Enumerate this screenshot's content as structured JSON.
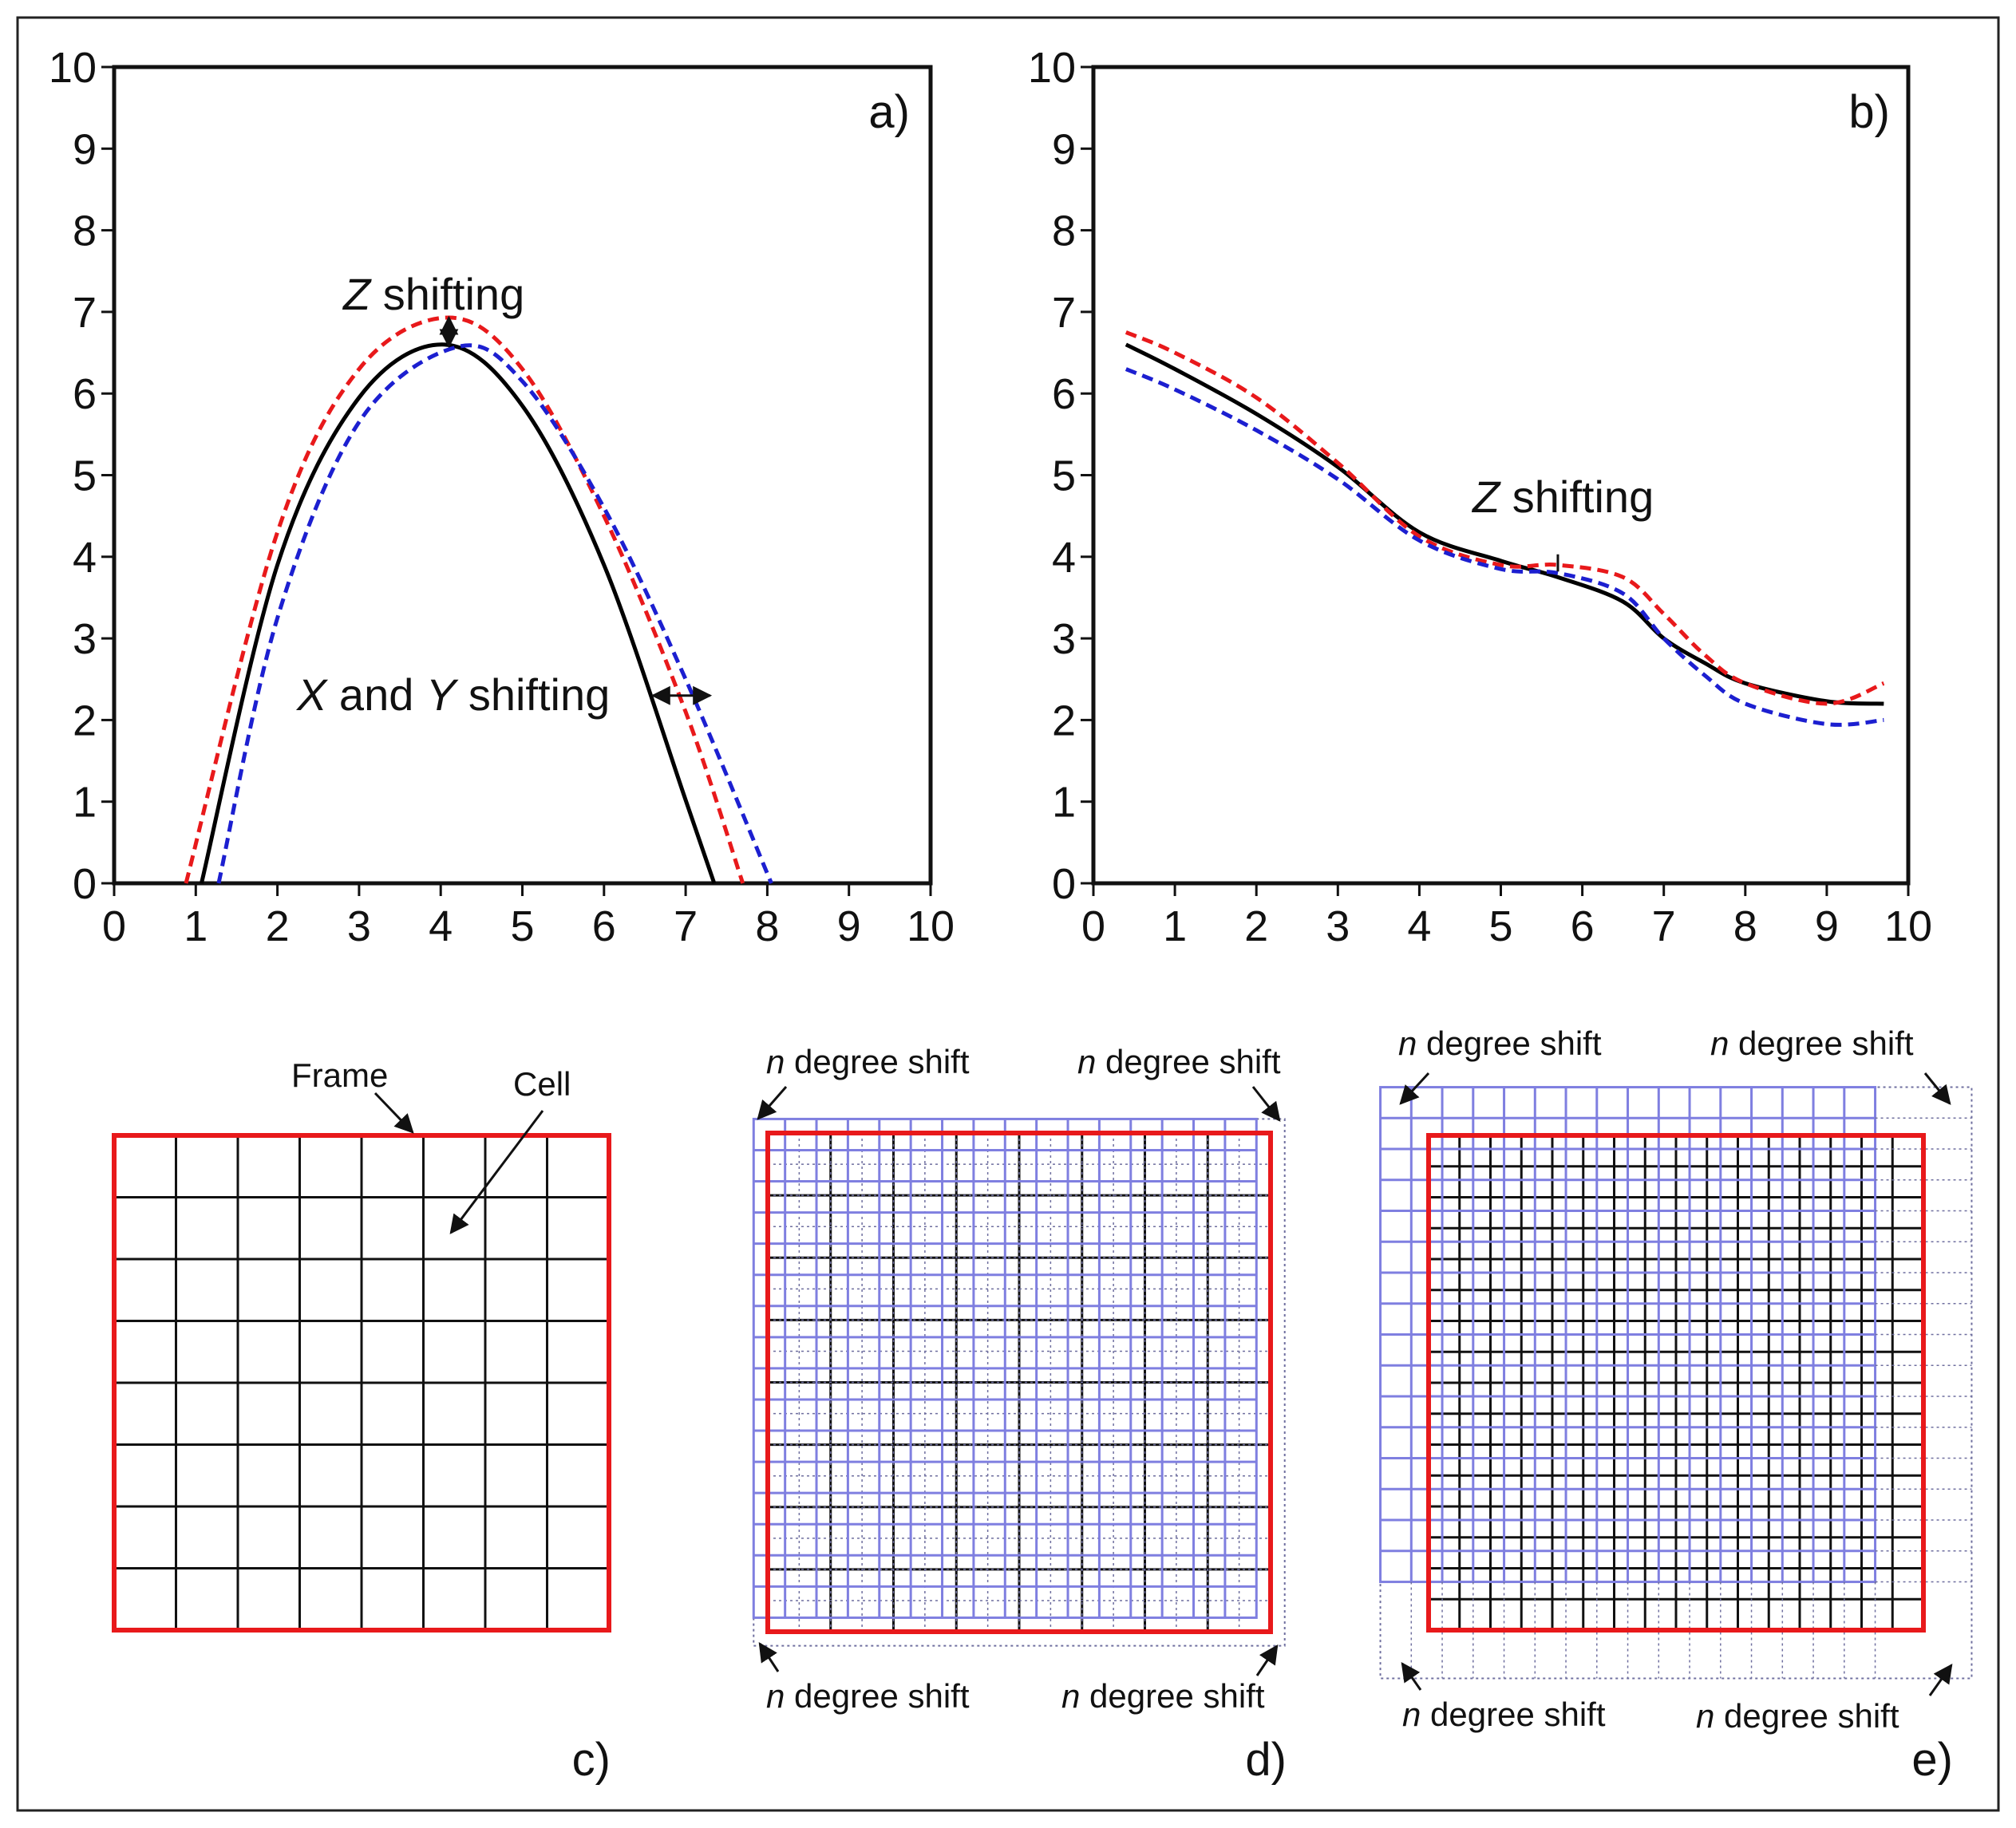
{
  "colors": {
    "original": "#000000",
    "shifted_red": "#e8191b",
    "shifted_blue": "#1c1fd0",
    "frame": "#e8191b",
    "shifted_grid": "#7f7fe0",
    "extension": "#6f6f9f"
  },
  "chart_data": [
    {
      "panel": "a)",
      "type": "line",
      "xlim": [
        0,
        10
      ],
      "ylim": [
        0,
        10
      ],
      "x_ticks": [
        0,
        1,
        2,
        3,
        4,
        5,
        6,
        7,
        8,
        9,
        10
      ],
      "y_ticks": [
        0,
        1,
        2,
        3,
        4,
        5,
        6,
        7,
        8,
        9,
        10
      ],
      "x_tick_labels": [
        "0",
        "1",
        "2",
        "3",
        "4",
        "5",
        "6",
        "7",
        "8",
        "9",
        "10"
      ],
      "y_tick_labels": [
        "0",
        "1",
        "2",
        "3",
        "4",
        "5",
        "6",
        "7",
        "8",
        "9",
        "10"
      ],
      "grid": false,
      "series": [
        {
          "name": "original",
          "color": "#000000",
          "dashed": false,
          "x": [
            1.07,
            2.0,
            3.0,
            4.05,
            5.0,
            6.0,
            7.0,
            7.35
          ],
          "y": [
            0.0,
            3.9,
            5.95,
            6.6,
            5.85,
            3.9,
            1.02,
            0.0
          ]
        },
        {
          "name": "Z-shifted",
          "color": "#e8191b",
          "dashed": true,
          "x": [
            0.88,
            2.0,
            3.0,
            4.1,
            5.0,
            6.0,
            7.0,
            7.7
          ],
          "y": [
            0.0,
            4.3,
            6.3,
            6.93,
            6.3,
            4.5,
            2.1,
            0.0
          ]
        },
        {
          "name": "X and Y shifted",
          "color": "#1c1fd0",
          "dashed": true,
          "x": [
            1.28,
            2.0,
            3.0,
            4.2,
            5.0,
            6.0,
            7.0,
            8.05
          ],
          "y": [
            0.0,
            3.25,
            5.65,
            6.57,
            6.15,
            4.6,
            2.5,
            0.0
          ]
        }
      ],
      "annotations": {
        "z_shift": {
          "italic": "Z",
          "text": " shifting",
          "arrow_x": 4.1,
          "arrow_y": [
            6.58,
            6.93
          ]
        },
        "xy_shift": {
          "italic_x": "X",
          "middle": " and ",
          "italic_y": "Y",
          "text": " shifting",
          "arrow_y": 2.3,
          "arrow_x": [
            6.6,
            7.3
          ]
        }
      }
    },
    {
      "panel": "b)",
      "type": "line",
      "xlim": [
        0,
        10
      ],
      "ylim": [
        0,
        10
      ],
      "x_ticks": [
        0,
        1,
        2,
        3,
        4,
        5,
        6,
        7,
        8,
        9,
        10
      ],
      "y_ticks": [
        0,
        1,
        2,
        3,
        4,
        5,
        6,
        7,
        8,
        9,
        10
      ],
      "x_tick_labels": [
        "0",
        "1",
        "2",
        "3",
        "4",
        "5",
        "6",
        "7",
        "8",
        "9",
        "10"
      ],
      "y_tick_labels": [
        "0",
        "1",
        "2",
        "3",
        "4",
        "5",
        "6",
        "7",
        "8",
        "9",
        "10"
      ],
      "grid": false,
      "series": [
        {
          "name": "original",
          "color": "#000000",
          "dashed": false,
          "x": [
            0.4,
            1.0,
            2.0,
            3.0,
            4.0,
            5.0,
            5.7,
            6.5,
            7.0,
            7.5,
            8.0,
            9.0,
            9.7
          ],
          "y": [
            6.6,
            6.3,
            5.75,
            5.1,
            4.3,
            3.95,
            3.75,
            3.45,
            3.0,
            2.7,
            2.45,
            2.23,
            2.2
          ]
        },
        {
          "name": "Z-shifted",
          "color": "#e8191b",
          "dashed": true,
          "x": [
            0.4,
            1.0,
            2.0,
            3.0,
            4.0,
            5.0,
            5.7,
            6.5,
            7.0,
            7.5,
            8.0,
            9.0,
            9.7
          ],
          "y": [
            6.75,
            6.5,
            5.95,
            5.15,
            4.25,
            3.9,
            3.9,
            3.75,
            3.3,
            2.8,
            2.45,
            2.2,
            2.45
          ]
        },
        {
          "name": "X and Y shifted",
          "color": "#1c1fd0",
          "dashed": true,
          "x": [
            0.4,
            1.0,
            2.0,
            3.0,
            4.0,
            5.0,
            5.7,
            6.5,
            7.0,
            7.5,
            8.0,
            9.0,
            9.7
          ],
          "y": [
            6.3,
            6.05,
            5.55,
            4.95,
            4.2,
            3.85,
            3.8,
            3.55,
            3.0,
            2.55,
            2.2,
            1.95,
            2.0
          ]
        }
      ],
      "annotations": {
        "z_shift": {
          "italic": "Z",
          "text": " shifting",
          "tick_x": 5.7,
          "tick_y": [
            3.82,
            4.03
          ]
        }
      }
    }
  ],
  "diagrams": {
    "c": {
      "tag": "c)",
      "frame_label": "Frame",
      "cell_label": "Cell",
      "columns": 8,
      "rows": 8
    },
    "d": {
      "tag": "d)",
      "original_columns": 8,
      "original_rows": 8,
      "subdivisions_per_cell": 2,
      "shifted_columns": 16,
      "shifted_rows": 16,
      "shift_labels": [
        {
          "italic": "n",
          "text": " degree shift"
        },
        {
          "italic": "n",
          "text": " degree shift"
        },
        {
          "italic": "n",
          "text": " degree shift"
        },
        {
          "italic": "n",
          "text": " degree shift"
        }
      ]
    },
    "e": {
      "tag": "e)",
      "original_columns": 8,
      "original_rows": 8,
      "subdivisions_per_cell": 2,
      "shifted_columns": 8,
      "shifted_rows": 8,
      "shift_labels": [
        {
          "italic": "n",
          "text": " degree shift"
        },
        {
          "italic": "n",
          "text": " degree shift"
        },
        {
          "italic": "n",
          "text": " degree shift"
        },
        {
          "italic": "n",
          "text": " degree shift"
        }
      ]
    }
  }
}
